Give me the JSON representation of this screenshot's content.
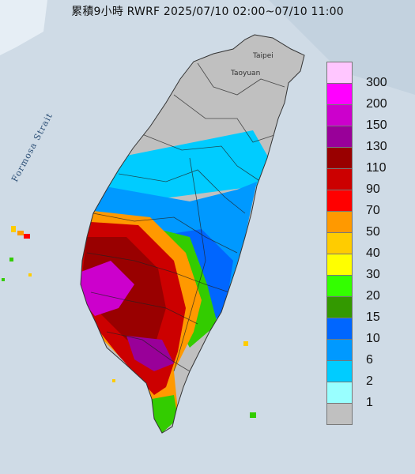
{
  "title": "累積9小時 RWRF 2025/07/10 02:00~07/10 11:00",
  "labels": {
    "strait": "Formosa Strait",
    "taipei": "Taipei",
    "taoyuan": "Taoyuan"
  },
  "legend": [
    {
      "value": "300",
      "color": "#ffc6ff"
    },
    {
      "value": "200",
      "color": "#ff00ff"
    },
    {
      "value": "150",
      "color": "#cc00cc"
    },
    {
      "value": "130",
      "color": "#990099"
    },
    {
      "value": "110",
      "color": "#990000"
    },
    {
      "value": "90",
      "color": "#cc0000"
    },
    {
      "value": "70",
      "color": "#ff0000"
    },
    {
      "value": "50",
      "color": "#ff9900"
    },
    {
      "value": "40",
      "color": "#ffcc00"
    },
    {
      "value": "30",
      "color": "#ffff00"
    },
    {
      "value": "20",
      "color": "#33ff00"
    },
    {
      "value": "15",
      "color": "#339900"
    },
    {
      "value": "10",
      "color": "#0066ff"
    },
    {
      "value": "6",
      "color": "#0099ff"
    },
    {
      "value": "2",
      "color": "#00ccff"
    },
    {
      "value": "1",
      "color": "#99ffff"
    },
    {
      "value": "",
      "color": "#c0c0c0"
    }
  ]
}
